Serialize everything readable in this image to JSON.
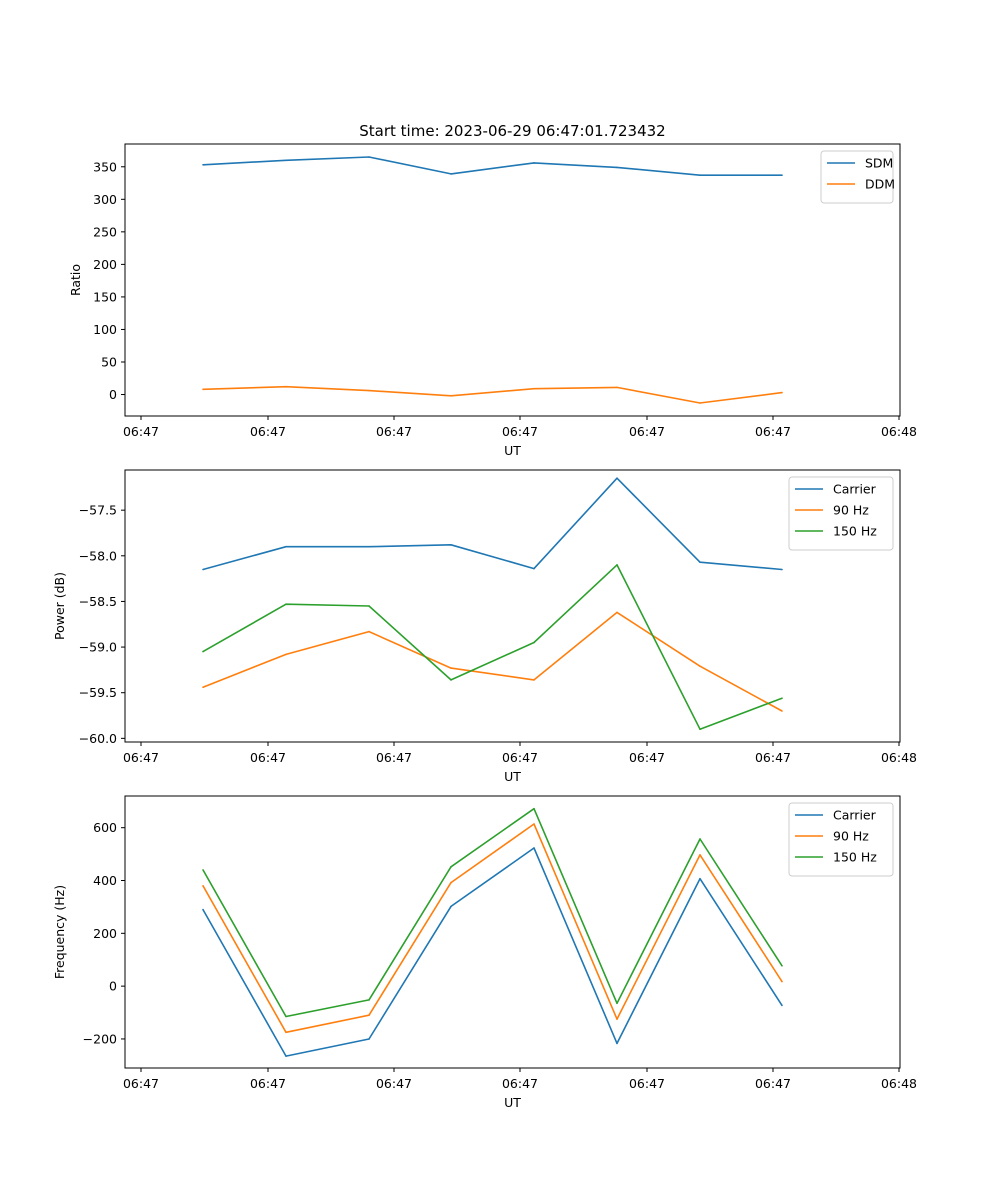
{
  "figure_title": "Start time: 2023-06-29 06:47:01.723432",
  "colors": {
    "blue": "#1f77b4",
    "orange": "#ff7f0e",
    "green": "#2ca02c"
  },
  "chart_data": [
    {
      "type": "line",
      "title": "Start time: 2023-06-29 06:47:01.723432",
      "xlabel": "UT",
      "ylabel": "Ratio",
      "x_tick_labels": [
        "06:47",
        "06:47",
        "06:47",
        "06:47",
        "06:47",
        "06:47",
        "06:48"
      ],
      "y_ticks": [
        0,
        50,
        100,
        150,
        200,
        250,
        300,
        350
      ],
      "ylim": [
        -33,
        385
      ],
      "legend_position": "top-right",
      "series": [
        {
          "name": "SDM",
          "color": "#1f77b4",
          "values": [
            353,
            360,
            365,
            339,
            356,
            349,
            337,
            337
          ]
        },
        {
          "name": "DDM",
          "color": "#ff7f0e",
          "values": [
            8,
            12,
            6,
            -2,
            9,
            11,
            -13,
            3
          ]
        }
      ]
    },
    {
      "type": "line",
      "title": "",
      "xlabel": "UT",
      "ylabel": "Power (dB)",
      "x_tick_labels": [
        "06:47",
        "06:47",
        "06:47",
        "06:47",
        "06:47",
        "06:47",
        "06:48"
      ],
      "y_ticks": [
        -60.0,
        -59.5,
        -59.0,
        -58.5,
        -58.0,
        -57.5
      ],
      "y_tick_labels": [
        "−60.0",
        "−59.5",
        "−59.0",
        "−58.5",
        "−58.0",
        "−57.5"
      ],
      "ylim": [
        -60.04,
        -57.06
      ],
      "legend_position": "top-right",
      "series": [
        {
          "name": "Carrier",
          "color": "#1f77b4",
          "values": [
            -58.15,
            -57.9,
            -57.9,
            -57.88,
            -58.14,
            -57.15,
            -58.07,
            -58.15
          ]
        },
        {
          "name": "90 Hz",
          "color": "#ff7f0e",
          "values": [
            -59.44,
            -59.08,
            -58.83,
            -59.23,
            -59.36,
            -58.62,
            -59.21,
            -59.7
          ]
        },
        {
          "name": "150 Hz",
          "color": "#2ca02c",
          "values": [
            -59.05,
            -58.53,
            -58.55,
            -59.36,
            -58.95,
            -58.1,
            -59.9,
            -59.56
          ]
        }
      ]
    },
    {
      "type": "line",
      "title": "",
      "xlabel": "UT",
      "ylabel": "Frequency (Hz)",
      "x_tick_labels": [
        "06:47",
        "06:47",
        "06:47",
        "06:47",
        "06:47",
        "06:47",
        "06:48"
      ],
      "y_ticks": [
        -200,
        0,
        200,
        400,
        600
      ],
      "y_tick_labels": [
        "−200",
        "0",
        "200",
        "400",
        "600"
      ],
      "ylim": [
        -310,
        720
      ],
      "legend_position": "top-right",
      "series": [
        {
          "name": "Carrier",
          "color": "#1f77b4",
          "values": [
            290,
            -265,
            -200,
            302,
            523,
            -217,
            407,
            -73
          ]
        },
        {
          "name": "90 Hz",
          "color": "#ff7f0e",
          "values": [
            380,
            -175,
            -110,
            392,
            614,
            -125,
            497,
            17
          ]
        },
        {
          "name": "150 Hz",
          "color": "#2ca02c",
          "values": [
            440,
            -115,
            -52,
            452,
            672,
            -65,
            557,
            77
          ]
        }
      ]
    }
  ]
}
